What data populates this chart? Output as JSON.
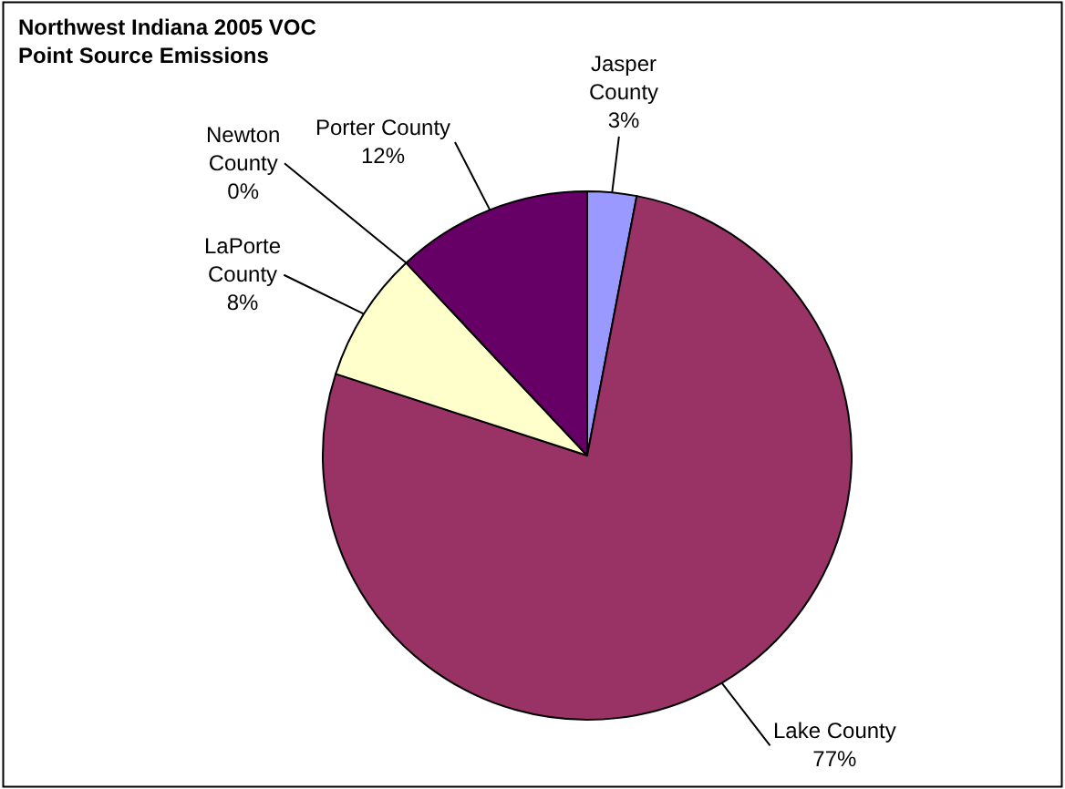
{
  "chart_data": {
    "type": "pie",
    "title": "Northwest Indiana 2005 VOC\nPoint Source Emissions",
    "categories": [
      "Jasper\nCounty",
      "Lake County",
      "LaPorte\nCounty",
      "Newton\nCounty",
      "Porter County"
    ],
    "values": [
      3,
      77,
      8,
      0,
      12
    ],
    "value_labels": [
      "3%",
      "77%",
      "8%",
      "0%",
      "12%"
    ],
    "colors": [
      "#9999ff",
      "#993366",
      "#ffffcc",
      "#ccffff",
      "#660066"
    ],
    "legend": false
  }
}
